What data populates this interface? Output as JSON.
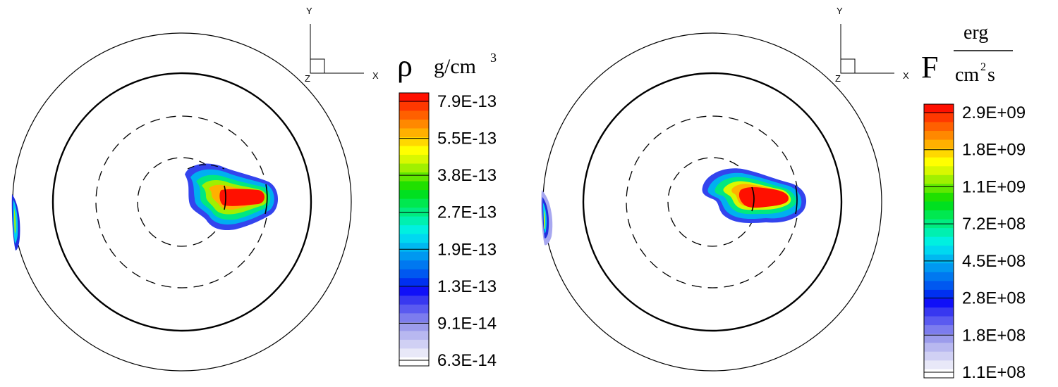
{
  "chart_data": [
    {
      "type": "heatmap",
      "description_panel": "left",
      "axes_triad": {
        "y": "Y",
        "x": "X",
        "z": "Z"
      },
      "colorbar": {
        "symbol": "ρ",
        "unit": "g/cm",
        "unit_superscript": "3",
        "ticks": [
          "7.9E-13",
          "5.5E-13",
          "3.8E-13",
          "2.7E-13",
          "1.9E-13",
          "1.3E-13",
          "9.1E-14",
          "6.3E-14"
        ],
        "min": 6.3e-14,
        "max": 7.9e-13,
        "scale": "log"
      }
    },
    {
      "type": "heatmap",
      "description_panel": "right",
      "axes_triad": {
        "y": "Y",
        "x": "X",
        "z": "Z"
      },
      "colorbar": {
        "symbol": "F",
        "unit_numerator": "erg",
        "unit_denominator": "cm",
        "unit_denominator_superscript": "2",
        "unit_denominator_tail": "s",
        "ticks": [
          "2.9E+09",
          "1.8E+09",
          "1.1E+09",
          "7.2E+08",
          "4.5E+08",
          "2.8E+08",
          "1.8E+08",
          "1.1E+08"
        ],
        "min": 110000000.0,
        "max": 2900000000.0,
        "scale": "log"
      }
    }
  ],
  "colors": {
    "levels": [
      "#ffffff",
      "#e8e8f8",
      "#d0d0f4",
      "#b8b8f0",
      "#9c9cec",
      "#7c7cee",
      "#5a5af0",
      "#3838f0",
      "#1010f8",
      "#0030f0",
      "#0058f0",
      "#0078f0",
      "#0098f0",
      "#00b8f0",
      "#00d8f0",
      "#00f0e0",
      "#00f0b0",
      "#00ec80",
      "#00e850",
      "#00e020",
      "#20e000",
      "#60e800",
      "#a0f000",
      "#d8f800",
      "#ffff00",
      "#ffd800",
      "#ffb000",
      "#ff8800",
      "#ff6000",
      "#ff3800",
      "#ff1000"
    ]
  }
}
